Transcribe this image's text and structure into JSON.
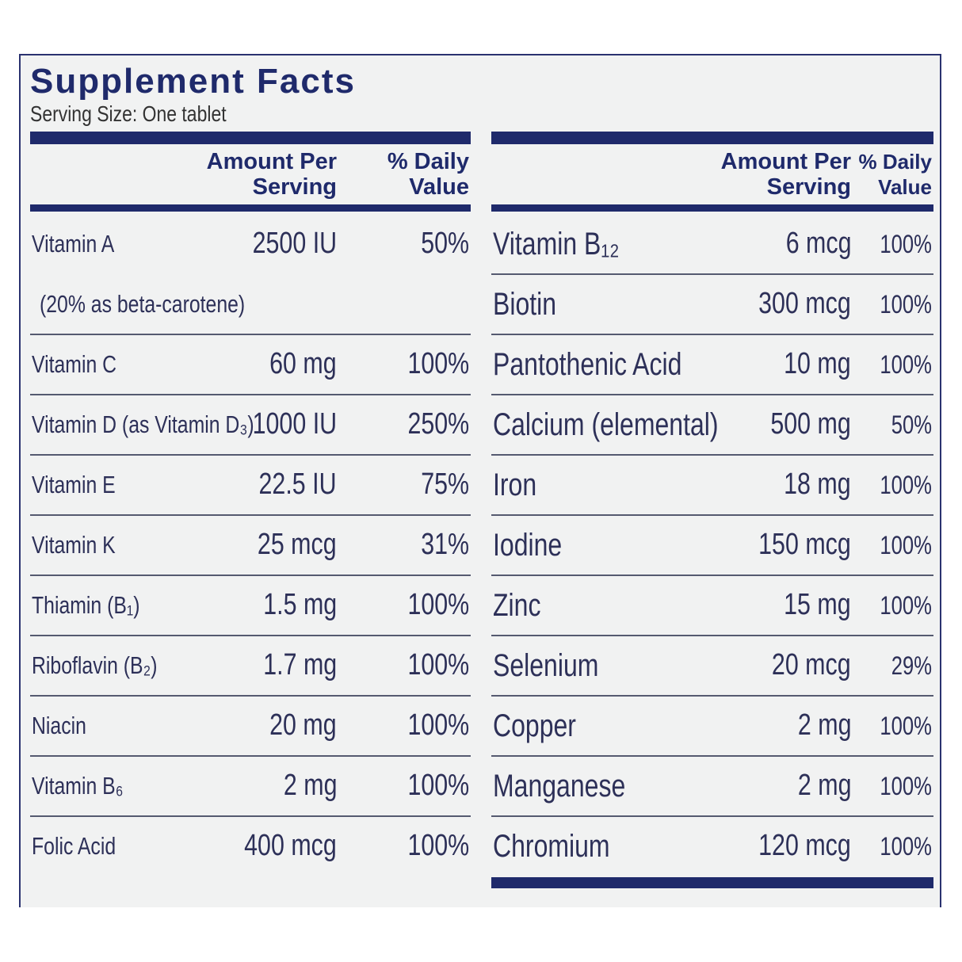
{
  "header": {
    "title": "Supplement Facts",
    "serving_size": "Serving Size: One tablet"
  },
  "left_table": {
    "columns": [
      "Amount Per Serving",
      "% Daily Value"
    ],
    "rows": [
      {
        "name": "Vitamin A",
        "amount": "2500 IU",
        "daily_value": "50%",
        "note": "(20% as beta-carotene)"
      },
      {
        "name": "Vitamin C",
        "amount": "60 mg",
        "daily_value": "100%"
      },
      {
        "name": "Vitamin D (as Vitamin D₃)",
        "amount": "1000 IU",
        "daily_value": "250%"
      },
      {
        "name": "Vitamin E",
        "amount": "22.5 IU",
        "daily_value": "75%"
      },
      {
        "name": "Vitamin K",
        "amount": "25 mcg",
        "daily_value": "31%"
      },
      {
        "name": "Thiamin (B₁)",
        "amount": "1.5 mg",
        "daily_value": "100%"
      },
      {
        "name": "Riboflavin (B₂)",
        "amount": "1.7 mg",
        "daily_value": "100%"
      },
      {
        "name": "Niacin",
        "amount": "20 mg",
        "daily_value": "100%"
      },
      {
        "name": "Vitamin B₆",
        "amount": "2 mg",
        "daily_value": "100%"
      },
      {
        "name": "Folic Acid",
        "amount": "400 mcg",
        "daily_value": "100%"
      }
    ]
  },
  "right_table": {
    "columns": [
      "Amount Per Serving",
      "% Daily Value"
    ],
    "rows": [
      {
        "name": "Vitamin B₁₂",
        "amount": "6 mcg",
        "daily_value": "100%"
      },
      {
        "name": "Biotin",
        "amount": "300 mcg",
        "daily_value": "100%"
      },
      {
        "name": "Pantothenic Acid",
        "amount": "10 mg",
        "daily_value": "100%"
      },
      {
        "name": "Calcium (elemental)",
        "amount": "500 mg",
        "daily_value": "50%"
      },
      {
        "name": "Iron",
        "amount": "18 mg",
        "daily_value": "100%"
      },
      {
        "name": "Iodine",
        "amount": "150 mcg",
        "daily_value": "100%"
      },
      {
        "name": "Zinc",
        "amount": "15 mg",
        "daily_value": "100%"
      },
      {
        "name": "Selenium",
        "amount": "20 mcg",
        "daily_value": "29%"
      },
      {
        "name": "Copper",
        "amount": "2 mg",
        "daily_value": "100%"
      },
      {
        "name": "Manganese",
        "amount": "2 mg",
        "daily_value": "100%"
      },
      {
        "name": "Chromium",
        "amount": "120 mcg",
        "daily_value": "100%"
      }
    ]
  }
}
